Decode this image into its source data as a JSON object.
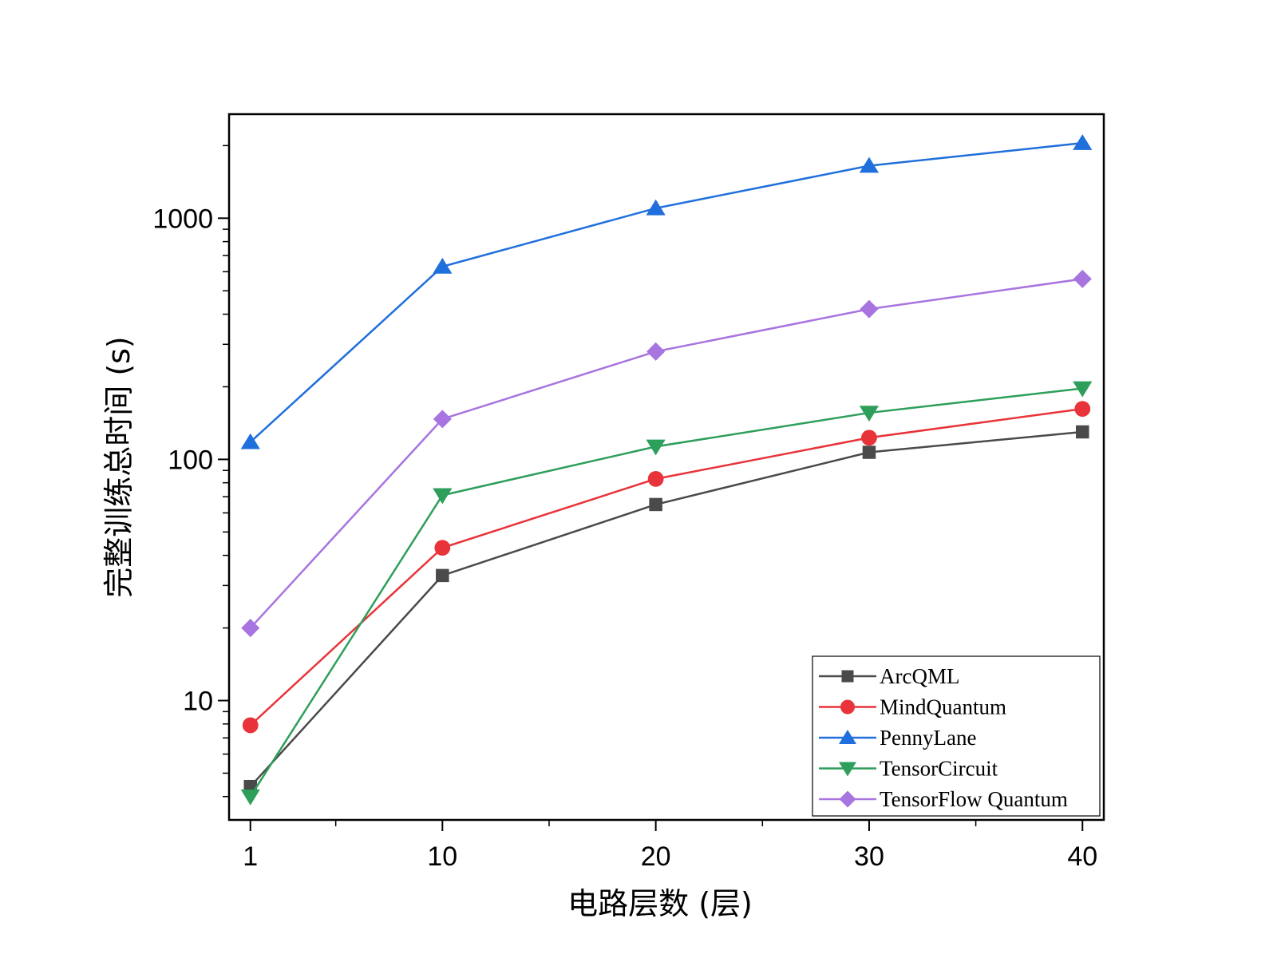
{
  "chart_data": {
    "type": "line",
    "x": [
      1,
      10,
      20,
      30,
      40
    ],
    "xlabel": "电路层数 (层)",
    "ylabel": "完整训练总时间 (s)",
    "yscale": "log",
    "ylim": [
      3.2,
      2700
    ],
    "xlim": [
      0,
      41
    ],
    "x_tick_labels": [
      "1",
      "10",
      "20",
      "30",
      "40"
    ],
    "y_tick_labels": [
      "10",
      "100",
      "1000"
    ],
    "legend_position": "bottom-right",
    "grid": false,
    "series": [
      {
        "name": "ArcQML",
        "values": [
          4.4,
          33,
          65,
          107,
          130
        ],
        "color": "#4a4a4a",
        "marker": "square"
      },
      {
        "name": "MindQuantum",
        "values": [
          7.9,
          43,
          83,
          123,
          162
        ],
        "color": "#e8333a",
        "marker": "circle"
      },
      {
        "name": "PennyLane",
        "values": [
          118,
          630,
          1100,
          1650,
          2050
        ],
        "color": "#1f6fdc",
        "marker": "triangle-up"
      },
      {
        "name": "TensorCircuit",
        "values": [
          4.0,
          71,
          113,
          156,
          197
        ],
        "color": "#2e9e5b",
        "marker": "triangle-down"
      },
      {
        "name": "TensorFlow Quantum",
        "values": [
          20,
          147,
          280,
          420,
          560
        ],
        "color": "#a874e0",
        "marker": "diamond"
      }
    ]
  }
}
